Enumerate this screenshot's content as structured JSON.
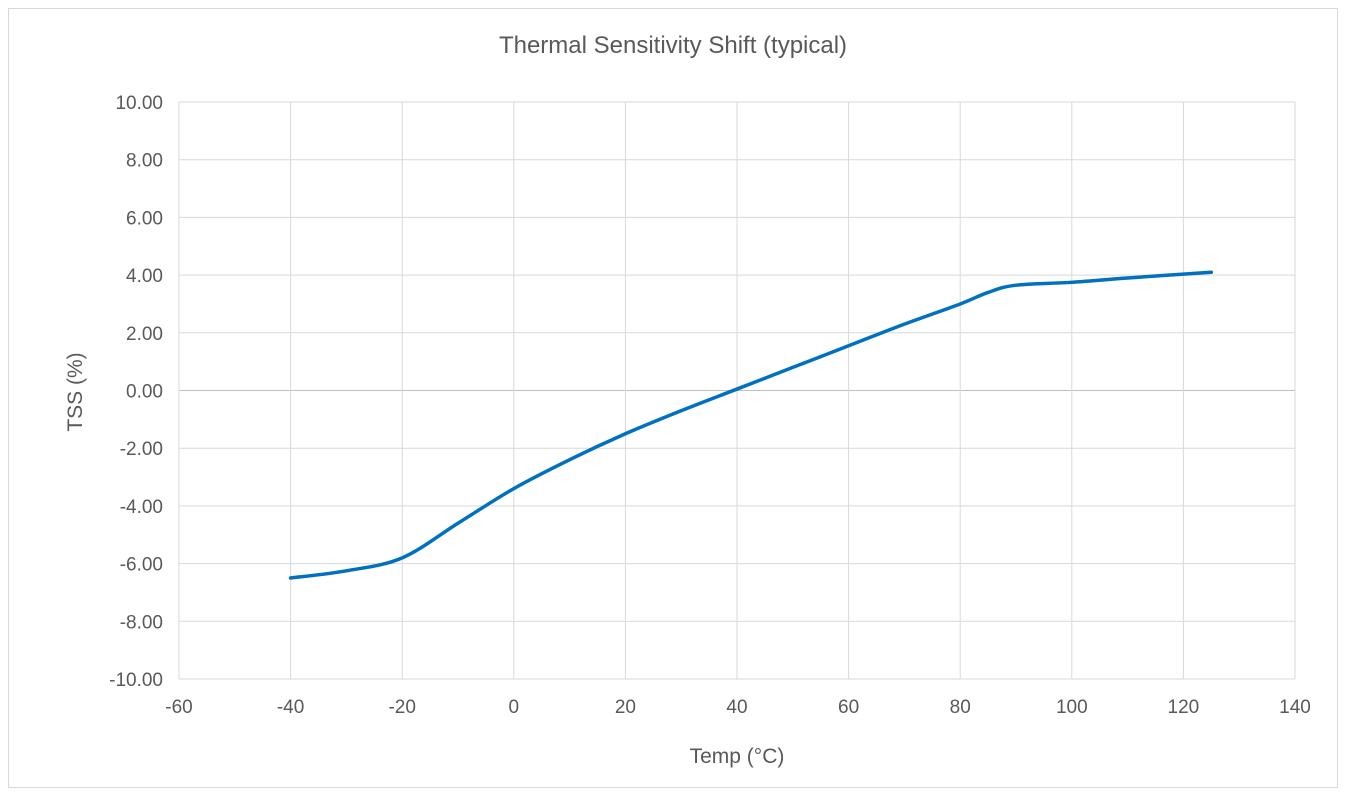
{
  "chart_data": {
    "type": "line",
    "title": "Thermal Sensitivity Shift (typical)",
    "xlabel": "Temp (°C)",
    "ylabel": "TSS (%)",
    "xlim": [
      -60,
      140
    ],
    "ylim": [
      -10,
      10
    ],
    "x_ticks": [
      -60,
      -40,
      -20,
      0,
      20,
      40,
      60,
      80,
      100,
      120,
      140
    ],
    "y_ticks": [
      "10.00",
      "8.00",
      "6.00",
      "4.00",
      "2.00",
      "0.00",
      "-2.00",
      "-4.00",
      "-6.00",
      "-8.00",
      "-10.00"
    ],
    "grid": true,
    "legend": "none",
    "series": [
      {
        "color": "#0070c0",
        "x": [
          -40,
          -30,
          -20,
          -10,
          0,
          10,
          20,
          30,
          40,
          50,
          60,
          70,
          80,
          85,
          90,
          100,
          110,
          125
        ],
        "y": [
          -6.5,
          -6.25,
          -5.8,
          -4.6,
          -3.4,
          -2.4,
          -1.5,
          -0.7,
          0.05,
          0.8,
          1.55,
          2.3,
          3.0,
          3.4,
          3.65,
          3.75,
          3.9,
          4.1
        ]
      }
    ]
  }
}
